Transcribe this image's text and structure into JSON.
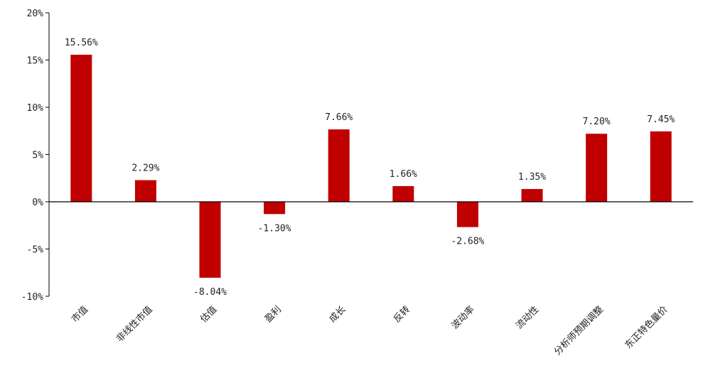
{
  "chart_data": {
    "type": "bar",
    "categories": [
      "市值",
      "非线性市值",
      "估值",
      "盈利",
      "成长",
      "反转",
      "波动率",
      "流动性",
      "分析师预期调整",
      "东正特色量价"
    ],
    "values": [
      15.56,
      2.29,
      -8.04,
      -1.3,
      7.66,
      1.66,
      -2.68,
      1.35,
      7.2,
      7.45
    ],
    "data_labels": [
      "15.56%",
      "2.29%",
      "-8.04%",
      "-1.30%",
      "7.66%",
      "1.66%",
      "-2.68%",
      "1.35%",
      "7.20%",
      "7.45%"
    ],
    "yticks": [
      20,
      15,
      10,
      5,
      0,
      -5,
      -10
    ],
    "ytick_labels": [
      "20%",
      "15%",
      "10%",
      "5%",
      "0%",
      "-5%",
      "-10%"
    ],
    "ylim": [
      -10,
      20
    ],
    "title": "",
    "xlabel": "",
    "ylabel": "",
    "grid": false,
    "legend": "none",
    "bar_color": "#c00000",
    "axis_color": "#000000"
  }
}
